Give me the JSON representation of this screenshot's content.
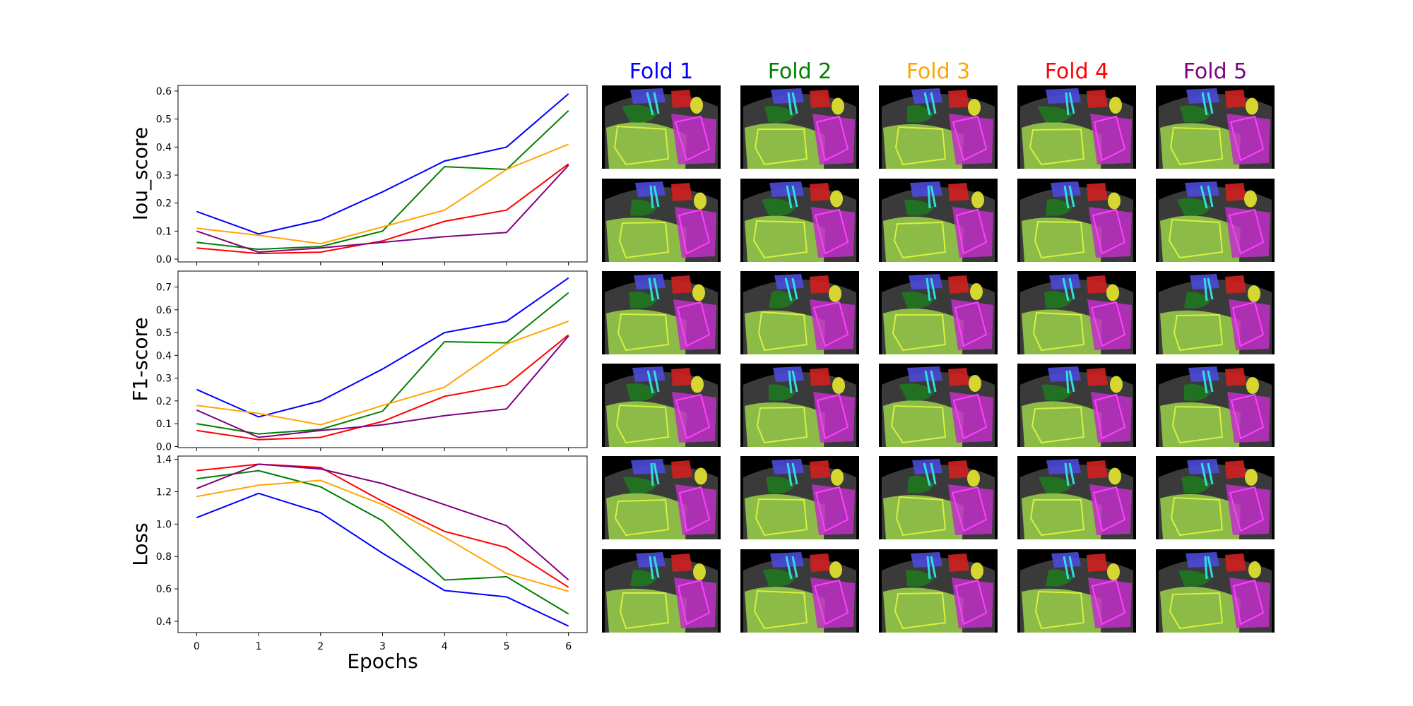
{
  "xlabel": "Epochs",
  "colors": {
    "fold1": "#0000ff",
    "fold2": "#008000",
    "fold3": "#ffa500",
    "fold4": "#ff0000",
    "fold5": "#800080"
  },
  "folds": [
    {
      "label": "Fold 1",
      "color": "#0000ff"
    },
    {
      "label": "Fold 2",
      "color": "#008000"
    },
    {
      "label": "Fold 3",
      "color": "#ffa500"
    },
    {
      "label": "Fold 4",
      "color": "#ff0000"
    },
    {
      "label": "Fold 5",
      "color": "#800080"
    }
  ],
  "chart_data": [
    {
      "type": "line",
      "ylabel": "Iou_score",
      "x": [
        0,
        1,
        2,
        3,
        4,
        5,
        6
      ],
      "ylim": [
        -0.01,
        0.62
      ],
      "yticks": [
        "0.0",
        "0.1",
        "0.2",
        "0.3",
        "0.4",
        "0.5",
        "0.6"
      ],
      "ytick_values": [
        0.0,
        0.1,
        0.2,
        0.3,
        0.4,
        0.5,
        0.6
      ],
      "grid": false,
      "series": [
        {
          "color": "#0000ff",
          "values": [
            0.17,
            0.09,
            0.14,
            0.24,
            0.35,
            0.4,
            0.59
          ]
        },
        {
          "color": "#008000",
          "values": [
            0.06,
            0.035,
            0.045,
            0.1,
            0.33,
            0.32,
            0.53
          ]
        },
        {
          "color": "#ffa500",
          "values": [
            0.11,
            0.085,
            0.055,
            0.115,
            0.175,
            0.32,
            0.41
          ]
        },
        {
          "color": "#ff0000",
          "values": [
            0.04,
            0.02,
            0.025,
            0.065,
            0.135,
            0.175,
            0.34
          ]
        },
        {
          "color": "#800080",
          "values": [
            0.1,
            0.025,
            0.04,
            0.06,
            0.08,
            0.095,
            0.335
          ]
        }
      ]
    },
    {
      "type": "line",
      "ylabel": "F1-score",
      "x": [
        0,
        1,
        2,
        3,
        4,
        5,
        6
      ],
      "ylim": [
        -0.005,
        0.77
      ],
      "yticks": [
        "0.0",
        "0.1",
        "0.2",
        "0.3",
        "0.4",
        "0.5",
        "0.6",
        "0.7"
      ],
      "ytick_values": [
        0.0,
        0.1,
        0.2,
        0.3,
        0.4,
        0.5,
        0.6,
        0.7
      ],
      "grid": false,
      "series": [
        {
          "color": "#0000ff",
          "values": [
            0.25,
            0.13,
            0.2,
            0.34,
            0.5,
            0.55,
            0.74
          ]
        },
        {
          "color": "#008000",
          "values": [
            0.1,
            0.055,
            0.075,
            0.155,
            0.46,
            0.455,
            0.675
          ]
        },
        {
          "color": "#ffa500",
          "values": [
            0.18,
            0.145,
            0.095,
            0.18,
            0.26,
            0.45,
            0.55
          ]
        },
        {
          "color": "#ff0000",
          "values": [
            0.07,
            0.03,
            0.04,
            0.11,
            0.22,
            0.27,
            0.49
          ]
        },
        {
          "color": "#800080",
          "values": [
            0.16,
            0.04,
            0.07,
            0.095,
            0.135,
            0.165,
            0.485
          ]
        }
      ]
    },
    {
      "type": "line",
      "ylabel": "Loss",
      "x": [
        0,
        1,
        2,
        3,
        4,
        5,
        6
      ],
      "ylim": [
        0.33,
        1.42
      ],
      "yticks": [
        "0.4",
        "0.6",
        "0.8",
        "1.0",
        "1.2",
        "1.4"
      ],
      "ytick_values": [
        0.4,
        0.6,
        0.8,
        1.0,
        1.2,
        1.4
      ],
      "xticks": [
        "0",
        "1",
        "2",
        "3",
        "4",
        "5",
        "6"
      ],
      "grid": false,
      "series": [
        {
          "color": "#0000ff",
          "values": [
            1.04,
            1.19,
            1.07,
            0.82,
            0.59,
            0.55,
            0.37
          ]
        },
        {
          "color": "#008000",
          "values": [
            1.28,
            1.33,
            1.23,
            1.02,
            0.655,
            0.675,
            0.445
          ]
        },
        {
          "color": "#ffa500",
          "values": [
            1.17,
            1.24,
            1.27,
            1.12,
            0.92,
            0.695,
            0.585
          ]
        },
        {
          "color": "#ff0000",
          "values": [
            1.33,
            1.37,
            1.35,
            1.14,
            0.955,
            0.855,
            0.61
          ]
        },
        {
          "color": "#800080",
          "values": [
            1.22,
            1.37,
            1.34,
            1.25,
            1.12,
            0.99,
            0.655
          ]
        }
      ]
    }
  ]
}
